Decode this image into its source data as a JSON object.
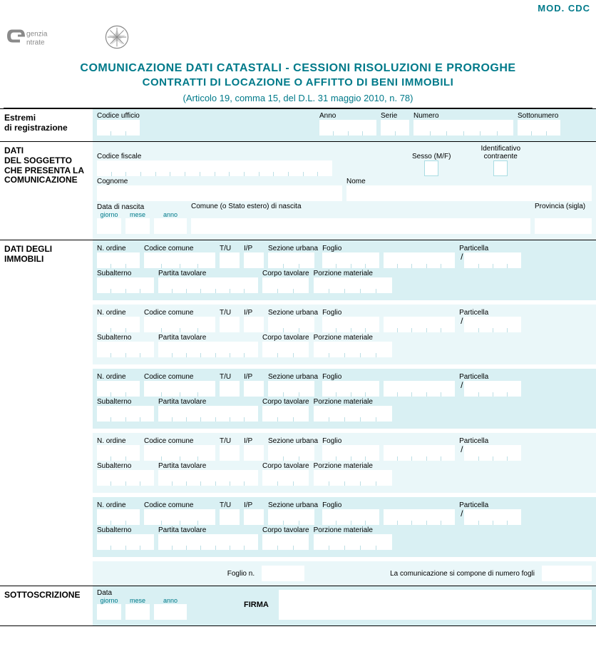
{
  "header": {
    "mod": "MOD. CDC",
    "title1": "COMUNICAZIONE DATI CATASTALI - CESSIONI RISOLUZIONI E PROROGHE",
    "title2": "CONTRATTI DI LOCAZIONE O AFFITTO DI BENI IMMOBILI",
    "subtitle": "(Articolo 19, comma 15, del D.L. 31 maggio 2010, n. 78)"
  },
  "sections": {
    "estremi": {
      "label": "Estremi di registrazione",
      "codice_ufficio": "Codice ufficio",
      "anno": "Anno",
      "serie": "Serie",
      "numero": "Numero",
      "sottonumero": "Sottonumero"
    },
    "soggetto": {
      "label": "DATI DEL SOGGETTO CHE PRESENTA LA COMUNICAZIONE",
      "codice_fiscale": "Codice fiscale",
      "sesso": "Sesso (M/F)",
      "identificativo": "Identificativo contraente",
      "cognome": "Cognome",
      "nome": "Nome",
      "data_nascita": "Data di nascita",
      "giorno": "giorno",
      "mese": "mese",
      "anno": "anno",
      "comune_nascita": "Comune (o Stato estero) di nascita",
      "provincia": "Provincia (sigla)"
    },
    "immobili": {
      "label": "DATI DEGLI IMMOBILI",
      "n_ordine": "N. ordine",
      "codice_comune": "Codice comune",
      "tu": "T/U",
      "ip": "I/P",
      "sezione_urbana": "Sezione urbana",
      "foglio": "Foglio",
      "particella": "Particella",
      "subalterno": "Subalterno",
      "partita_tavolare": "Partita tavolare",
      "corpo_tavolare": "Corpo tavolare",
      "porzione_materiale": "Porzione materiale",
      "foglio_n": "Foglio n.",
      "compone": "La comunicazione si compone di numero fogli"
    },
    "sottoscrizione": {
      "label": "SOTTOSCRIZIONE",
      "data": "Data",
      "giorno": "giorno",
      "mese": "mese",
      "anno": "anno",
      "firma": "FIRMA"
    }
  },
  "style": {
    "accent": "#007a8a",
    "panel_bg": "#d9f0f3",
    "panel_bg_light": "#eaf7f9"
  }
}
